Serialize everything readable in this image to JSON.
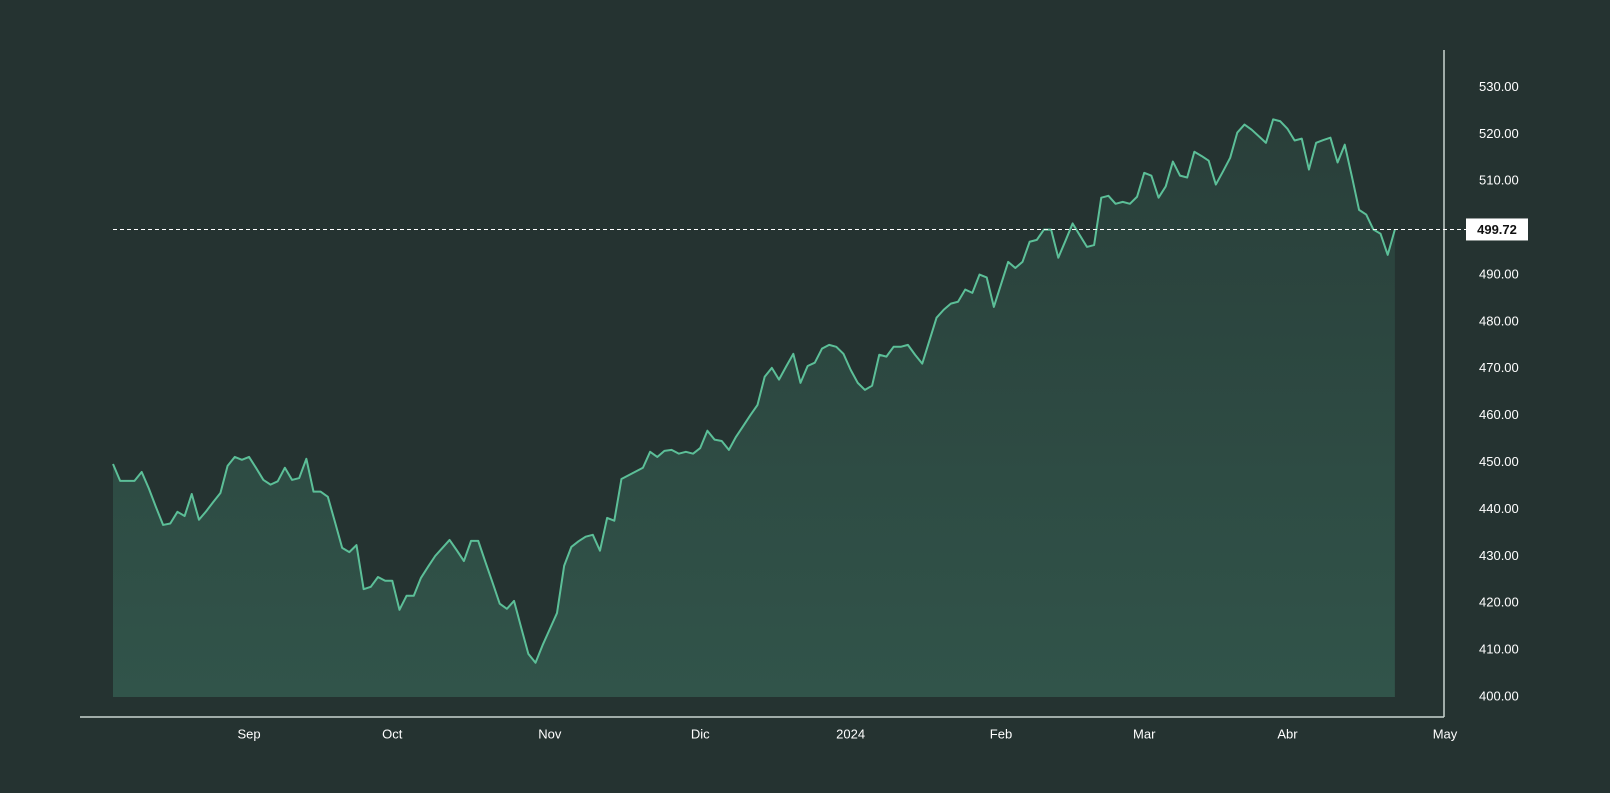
{
  "chart_data": {
    "type": "area",
    "color": "#5cbf98",
    "fill_color": "#31544a",
    "price_line": true,
    "categories": [
      null,
      null,
      null,
      null,
      null,
      null,
      null,
      null,
      null,
      null,
      null,
      null,
      null,
      null,
      null,
      null,
      null,
      null,
      null,
      "Sep",
      null,
      null,
      null,
      null,
      null,
      null,
      null,
      null,
      null,
      null,
      null,
      null,
      null,
      null,
      null,
      null,
      null,
      null,
      null,
      "Oct",
      null,
      null,
      null,
      null,
      null,
      null,
      null,
      null,
      null,
      null,
      null,
      null,
      null,
      null,
      null,
      null,
      null,
      null,
      null,
      null,
      null,
      "Nov",
      null,
      null,
      null,
      null,
      null,
      null,
      null,
      null,
      null,
      null,
      null,
      null,
      null,
      null,
      null,
      null,
      null,
      null,
      null,
      null,
      "Dic",
      null,
      null,
      null,
      null,
      null,
      null,
      null,
      null,
      null,
      null,
      null,
      null,
      null,
      null,
      null,
      null,
      null,
      null,
      null,
      null,
      "2024",
      null,
      null,
      null,
      null,
      null,
      null,
      null,
      null,
      null,
      null,
      null,
      null,
      null,
      null,
      null,
      null,
      null,
      null,
      null,
      null,
      "Feb",
      null,
      null,
      null,
      null,
      null,
      null,
      null,
      null,
      null,
      null,
      null,
      null,
      null,
      null,
      null,
      null,
      null,
      null,
      null,
      "Mar",
      null,
      null,
      null,
      null,
      null,
      null,
      null,
      null,
      null,
      null,
      null,
      null,
      null,
      null,
      null,
      null,
      null,
      null,
      null,
      "Abr",
      null,
      null,
      null,
      null,
      null,
      null,
      null,
      null,
      null,
      null,
      null,
      null,
      null,
      null,
      null,
      null,
      null,
      null,
      null,
      null,
      null,
      "May"
    ],
    "values": [
      449.7,
      446.1,
      446.1,
      446.1,
      448.0,
      444.5,
      440.5,
      436.7,
      437.0,
      439.5,
      438.6,
      443.3,
      437.8,
      439.6,
      441.6,
      443.5,
      449.3,
      451.2,
      450.6,
      451.2,
      448.8,
      446.3,
      445.3,
      446.0,
      448.9,
      446.3,
      446.7,
      450.8,
      443.8,
      443.8,
      442.7,
      437.3,
      431.8,
      430.9,
      432.4,
      423.0,
      423.5,
      425.6,
      424.8,
      424.8,
      418.6,
      421.6,
      421.6,
      425.4,
      427.8,
      430.1,
      431.8,
      433.5,
      431.3,
      429.0,
      433.3,
      433.3,
      428.8,
      424.4,
      419.9,
      418.8,
      420.5,
      414.8,
      409.2,
      407.3,
      411.1,
      414.5,
      417.9,
      428.0,
      432.0,
      433.2,
      434.2,
      434.6,
      431.2,
      438.2,
      437.6,
      446.5,
      447.3,
      448.1,
      448.9,
      452.3,
      451.2,
      452.5,
      452.7,
      451.9,
      452.3,
      451.9,
      453.1,
      456.8,
      454.9,
      454.6,
      452.7,
      455.5,
      457.8,
      460.1,
      462.3,
      468.3,
      470.2,
      467.7,
      470.5,
      473.2,
      467.0,
      470.6,
      471.3,
      474.3,
      475.1,
      474.7,
      473.2,
      469.8,
      467.0,
      465.5,
      466.4,
      473.0,
      472.6,
      474.7,
      474.7,
      475.1,
      473.0,
      471.1,
      476.0,
      480.9,
      482.6,
      483.9,
      484.3,
      486.9,
      486.2,
      490.1,
      489.5,
      483.2,
      488.0,
      492.8,
      491.5,
      492.8,
      497.1,
      497.5,
      499.7,
      499.7,
      493.7,
      497.3,
      501.0,
      498.5,
      496.0,
      496.4,
      506.5,
      506.9,
      505.2,
      505.6,
      505.2,
      506.7,
      511.8,
      511.2,
      506.5,
      508.9,
      514.2,
      511.2,
      510.8,
      516.3,
      515.4,
      514.4,
      509.3,
      512.1,
      515.0,
      520.4,
      522.1,
      521.0,
      519.6,
      518.2,
      523.2,
      522.8,
      521.2,
      518.7,
      519.1,
      512.5,
      518.2,
      518.8,
      519.3,
      514.0,
      517.8,
      511.0,
      503.9,
      502.9,
      499.7,
      498.8,
      494.3,
      499.72,
      null,
      null,
      null,
      null,
      null,
      null,
      null
    ],
    "ylim": [
      400,
      538
    ],
    "yticks": [
      {
        "value": 400,
        "label": "400.00"
      },
      {
        "value": 410,
        "label": "410.00"
      },
      {
        "value": 420,
        "label": "420.00"
      },
      {
        "value": 430,
        "label": "430.00"
      },
      {
        "value": 440,
        "label": "440.00"
      },
      {
        "value": 450,
        "label": "450.00"
      },
      {
        "value": 460,
        "label": "460.00"
      },
      {
        "value": 470,
        "label": "470.00"
      },
      {
        "value": 480,
        "label": "480.00"
      },
      {
        "value": 490,
        "label": "490.00"
      },
      {
        "value": 500,
        "label": "500.00"
      },
      {
        "value": 510,
        "label": "510.00"
      },
      {
        "value": 520,
        "label": "520.00"
      },
      {
        "value": 530,
        "label": "530.00"
      }
    ],
    "grid": false
  }
}
